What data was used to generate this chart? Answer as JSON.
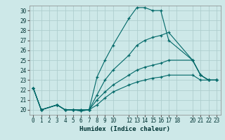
{
  "xlabel": "Humidex (Indice chaleur)",
  "ylabel": "",
  "background_color": "#cde8e8",
  "grid_color": "#aecece",
  "line_color": "#006868",
  "xlim": [
    -0.5,
    23.5
  ],
  "ylim": [
    19.5,
    30.5
  ],
  "xticks": [
    0,
    1,
    2,
    3,
    4,
    5,
    6,
    7,
    8,
    9,
    10,
    12,
    13,
    14,
    15,
    16,
    17,
    18,
    20,
    21,
    22,
    23
  ],
  "yticks": [
    20,
    21,
    22,
    23,
    24,
    25,
    26,
    27,
    28,
    29,
    30
  ],
  "series": [
    {
      "x": [
        0,
        1,
        3,
        4,
        5,
        6,
        7,
        8,
        9,
        10,
        12,
        13,
        14,
        15,
        16,
        17,
        20,
        21,
        22,
        23
      ],
      "y": [
        22.2,
        20.0,
        20.5,
        20.0,
        20.0,
        20.0,
        20.0,
        23.3,
        25.0,
        26.5,
        29.2,
        30.3,
        30.3,
        30.0,
        30.0,
        27.0,
        25.0,
        23.5,
        23.0,
        23.0
      ]
    },
    {
      "x": [
        0,
        1,
        3,
        4,
        5,
        6,
        7,
        8,
        9,
        10,
        12,
        13,
        14,
        15,
        16,
        17,
        20,
        21,
        22,
        23
      ],
      "y": [
        22.2,
        20.0,
        20.5,
        20.0,
        20.0,
        20.0,
        20.0,
        21.5,
        23.0,
        24.0,
        25.5,
        26.5,
        27.0,
        27.3,
        27.5,
        27.8,
        25.0,
        23.5,
        23.0,
        23.0
      ]
    },
    {
      "x": [
        0,
        1,
        3,
        4,
        5,
        6,
        7,
        8,
        9,
        10,
        12,
        13,
        14,
        15,
        16,
        17,
        20,
        21,
        22,
        23
      ],
      "y": [
        22.2,
        20.0,
        20.5,
        20.0,
        20.0,
        19.9,
        20.0,
        21.0,
        21.8,
        22.5,
        23.5,
        24.0,
        24.3,
        24.5,
        24.7,
        25.0,
        25.0,
        23.5,
        23.0,
        23.0
      ]
    },
    {
      "x": [
        0,
        1,
        3,
        4,
        5,
        6,
        7,
        8,
        9,
        10,
        12,
        13,
        14,
        15,
        16,
        17,
        20,
        21,
        22,
        23
      ],
      "y": [
        22.2,
        20.0,
        20.5,
        20.0,
        20.0,
        19.9,
        20.0,
        20.5,
        21.2,
        21.8,
        22.5,
        22.8,
        23.0,
        23.2,
        23.3,
        23.5,
        23.5,
        23.0,
        23.0,
        23.0
      ]
    }
  ]
}
